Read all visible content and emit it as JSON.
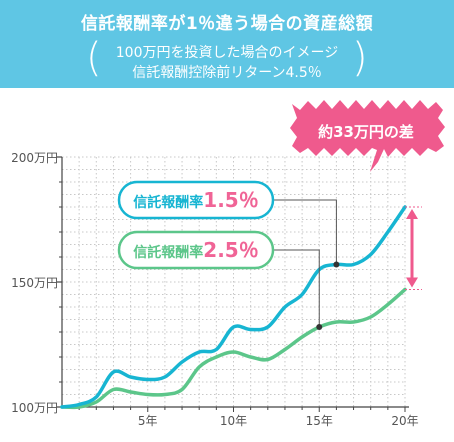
{
  "header": {
    "title": "信託報酬率が1％違う場合の資産総額",
    "sub_line1": "100万円を投資した場合のイメージ",
    "sub_line2": "信託報酬控除前リターン4.5％"
  },
  "callouts": {
    "difference": "約33万円の差",
    "low_fee_label": "信託報酬率",
    "low_fee_value": "1.5％",
    "high_fee_label": "信託報酬率",
    "high_fee_value": "2.5％"
  },
  "colors": {
    "header_bg": "#5fc6e4",
    "series_low_fee": "#17b5d2",
    "series_high_fee": "#5cc68a",
    "accent_pink": "#ef5a8d",
    "value_pink": "#f06496",
    "grid": "#c8c8c8",
    "axis": "#444444"
  },
  "chart_data": {
    "type": "line",
    "title": "信託報酬率が1％違う場合の資産総額",
    "xlabel": "",
    "ylabel": "",
    "x": [
      0,
      1,
      2,
      3,
      4,
      5,
      6,
      7,
      8,
      9,
      10,
      11,
      12,
      13,
      14,
      15,
      16,
      17,
      18,
      19,
      20
    ],
    "x_ticks": [
      5,
      10,
      15,
      20
    ],
    "x_tick_labels": [
      "5年",
      "10年",
      "15年",
      "20年"
    ],
    "ylim": [
      100,
      200
    ],
    "y_ticks": [
      100,
      150,
      200
    ],
    "y_tick_labels": [
      "100万円",
      "150万円",
      "200万円"
    ],
    "grid": true,
    "series": [
      {
        "name": "信託報酬率1.5％",
        "values": [
          100,
          101,
          104,
          114,
          112,
          111,
          112,
          118,
          122,
          123,
          132,
          131,
          132,
          140,
          145,
          155,
          157,
          157,
          161,
          170,
          180
        ]
      },
      {
        "name": "信託報酬率2.5％",
        "values": [
          100,
          100,
          102,
          107,
          106,
          105,
          105,
          107,
          116,
          120,
          122,
          120,
          119,
          123,
          128,
          132,
          134,
          134,
          136,
          141,
          147
        ]
      }
    ],
    "annotations": [
      {
        "text": "約33万円の差",
        "x": 20,
        "y_range": [
          147,
          180
        ]
      }
    ]
  }
}
